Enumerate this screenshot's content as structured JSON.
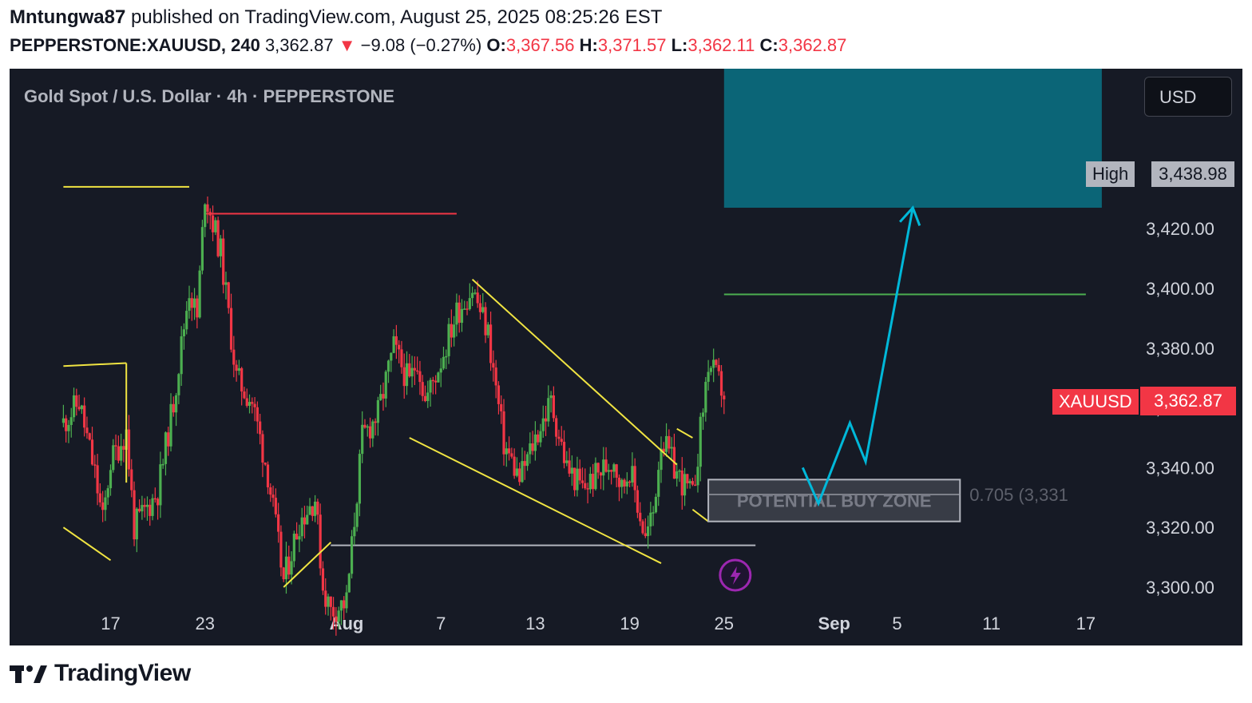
{
  "header": {
    "author": "Mntungwa87",
    "published_text": "published on TradingView.com, August 25, 2025 08:25:26 EST",
    "symbol": "PEPPERSTONE:XAUUSD, 240",
    "last": "3,362.87",
    "change_arrow": "▼",
    "change": "−9.08 (−0.27%)",
    "o_label": "O:",
    "o_value": "3,367.56",
    "h_label": "H:",
    "h_value": "3,371.57",
    "l_label": "L:",
    "l_value": "3,362.11",
    "c_label": "C:",
    "c_value": "3,362.87"
  },
  "chart": {
    "legend_title": "Gold Spot / U.S. Dollar · 4h · PEPPERSTONE",
    "currency_button": "USD",
    "high_label": "High",
    "high_value": "3,438.98",
    "symbol_label": "XAUUSD",
    "symbol_price": "3,362.87",
    "buy_zone_label": "POTENTIAL BUY ZONE",
    "fib_label": "0.705 (3,331",
    "colors": {
      "up": "#4caf50",
      "down": "#f23645",
      "background": "#161a25",
      "target_box": "#0b6577",
      "arrow": "#00b8d9",
      "pattern": "#f0e442"
    }
  },
  "footer": {
    "brand": "TradingView"
  },
  "chart_data": {
    "type": "candlestick",
    "title": "Gold Spot / U.S. Dollar · 4h · PEPPERSTONE",
    "ylim": [
      3295,
      3450
    ],
    "y_ticks": [
      3300,
      3320,
      3340,
      3360,
      3380,
      3400,
      3420
    ],
    "y_tick_labels": [
      "3,300.00",
      "3,320.00",
      "3,340.00",
      "3,360.00",
      "3,380.00",
      "3,400.00",
      "3,420.00"
    ],
    "x_tick_labels": [
      "17",
      "23",
      "Aug",
      "7",
      "13",
      "19",
      "25",
      "Sep",
      "5",
      "11",
      "17"
    ],
    "x_tick_dates": [
      "2025-07-17",
      "2025-07-23",
      "2025-08-01",
      "2025-08-07",
      "2025-08-13",
      "2025-08-19",
      "2025-08-25",
      "2025-09-01",
      "2025-09-05",
      "2025-09-11",
      "2025-09-17"
    ],
    "anchors": [
      [
        "2025-07-14",
        3355
      ],
      [
        "2025-07-15",
        3362
      ],
      [
        "2025-07-16",
        3338
      ],
      [
        "2025-07-16T12",
        3322
      ],
      [
        "2025-07-17",
        3342
      ],
      [
        "2025-07-18",
        3352
      ],
      [
        "2025-07-18T12",
        3320
      ],
      [
        "2025-07-20",
        3332
      ],
      [
        "2025-07-21",
        3362
      ],
      [
        "2025-07-22",
        3400
      ],
      [
        "2025-07-22T12",
        3390
      ],
      [
        "2025-07-23",
        3432
      ],
      [
        "2025-07-24",
        3412
      ],
      [
        "2025-07-25",
        3370
      ],
      [
        "2025-07-26",
        3362
      ],
      [
        "2025-07-27",
        3338
      ],
      [
        "2025-07-28",
        3302
      ],
      [
        "2025-07-29",
        3322
      ],
      [
        "2025-07-30",
        3330
      ],
      [
        "2025-07-30T12",
        3300
      ],
      [
        "2025-07-31",
        3292
      ],
      [
        "2025-08-01",
        3295
      ],
      [
        "2025-08-02",
        3350
      ],
      [
        "2025-08-03",
        3358
      ],
      [
        "2025-08-04",
        3380
      ],
      [
        "2025-08-05",
        3368
      ],
      [
        "2025-08-05T12",
        3377
      ],
      [
        "2025-08-06",
        3362
      ],
      [
        "2025-08-07",
        3376
      ],
      [
        "2025-08-08",
        3392
      ],
      [
        "2025-08-09",
        3400
      ],
      [
        "2025-08-10",
        3385
      ],
      [
        "2025-08-11",
        3348
      ],
      [
        "2025-08-12",
        3336
      ],
      [
        "2025-08-13",
        3350
      ],
      [
        "2025-08-14",
        3362
      ],
      [
        "2025-08-15",
        3340
      ],
      [
        "2025-08-16",
        3333
      ],
      [
        "2025-08-17",
        3338
      ],
      [
        "2025-08-18",
        3343
      ],
      [
        "2025-08-18T12",
        3333
      ],
      [
        "2025-08-19",
        3340
      ],
      [
        "2025-08-20",
        3316
      ],
      [
        "2025-08-20T12",
        3325
      ],
      [
        "2025-08-21",
        3350
      ],
      [
        "2025-08-22",
        3338
      ],
      [
        "2025-08-23",
        3330
      ],
      [
        "2025-08-24",
        3375
      ],
      [
        "2025-08-25",
        3365
      ]
    ],
    "last_price": 3362.87,
    "levels": [
      {
        "price": 3398,
        "color": "#4caf50",
        "from": "2025-08-25",
        "to": "2025-09-17"
      },
      {
        "price": 3314,
        "color": "#b2b5be",
        "from": "2025-07-31",
        "to": "2025-08-27"
      },
      {
        "price": 3425,
        "color": "#f23645",
        "from": "2025-07-23",
        "to": "2025-08-08"
      },
      {
        "price": 3434,
        "color": "#f0e442",
        "from": "2025-07-14",
        "to": "2025-07-22"
      }
    ],
    "buy_zone": {
      "from": "2025-08-24",
      "to": "2025-09-09",
      "top": 3336,
      "bottom": 3322,
      "fib_price": 3331,
      "fib_ratio": 0.705
    },
    "target_zone": {
      "from": "2025-08-25",
      "to": "2025-09-17",
      "bottom": 3427
    },
    "projection": [
      [
        "2025-08-30",
        3340
      ],
      [
        "2025-08-31",
        3328
      ],
      [
        "2025-09-02",
        3355
      ],
      [
        "2025-09-03",
        3342
      ],
      [
        "2025-09-06",
        3427
      ]
    ],
    "patterns": {
      "falling_wedge_upper": [
        [
          "2025-08-09",
          3403
        ],
        [
          "2025-08-22",
          3341
        ]
      ],
      "falling_wedge_lower": [
        [
          "2025-08-05",
          3350
        ],
        [
          "2025-08-21",
          3308
        ]
      ],
      "flag_top": [
        [
          "2025-08-22",
          3353
        ],
        [
          "2025-08-23",
          3350
        ]
      ],
      "flag_bottom": [
        [
          "2025-08-23",
          3326
        ],
        [
          "2025-08-24",
          3322
        ]
      ],
      "triangle_left_top": [
        [
          "2025-07-14",
          3374
        ],
        [
          "2025-07-18",
          3375
        ]
      ],
      "triangle_left_bottom": [
        [
          "2025-07-14",
          3320
        ],
        [
          "2025-07-17",
          3309
        ]
      ],
      "triangle_left_side": [
        [
          "2025-07-18",
          3375
        ],
        [
          "2025-07-18",
          3335
        ]
      ],
      "rise_line": [
        [
          "2025-07-28",
          3300
        ],
        [
          "2025-07-31",
          3315
        ]
      ]
    }
  }
}
